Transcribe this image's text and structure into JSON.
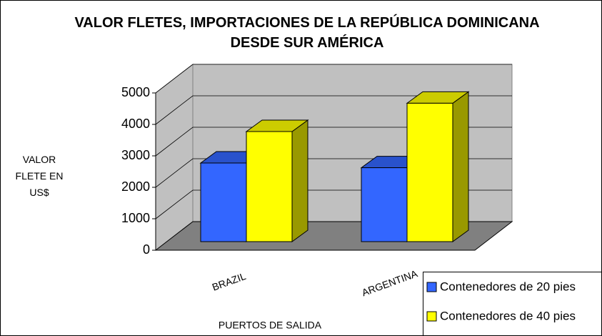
{
  "chart_data": {
    "type": "bar3d",
    "title": "VALOR FLETES, IMPORTACIONES DE LA REPÚBLICA DOMINICANA DESDE SUR AMÉRICA",
    "xlabel": "PUERTOS DE SALIDA",
    "ylabel": "VALOR FLETE EN US$",
    "categories": [
      "BRAZIL",
      "ARGENTINA"
    ],
    "series": [
      {
        "name": "Contenedores de 20 pies",
        "color": "#3366ff",
        "values": [
          2500,
          2350
        ]
      },
      {
        "name": "Contenedores de 40 pies",
        "color": "#ffff00",
        "values": [
          3500,
          4400
        ]
      }
    ],
    "ylim": [
      0,
      5000
    ],
    "yticks": [
      0,
      1000,
      2000,
      3000,
      4000,
      5000
    ],
    "grid": true,
    "legend": "bottom-right"
  }
}
